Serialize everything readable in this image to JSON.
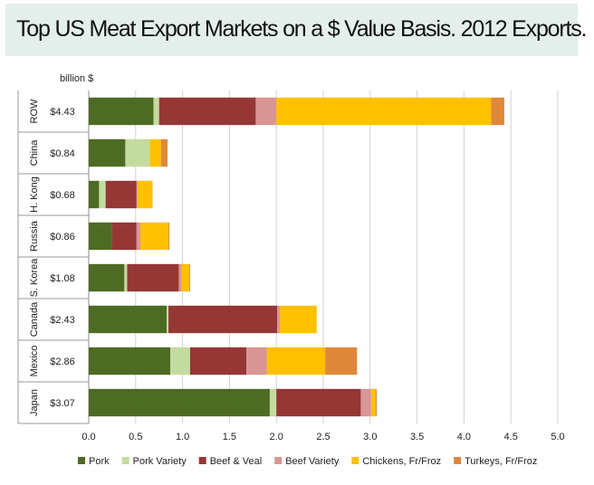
{
  "title": "Top US Meat Export Markets on a $ Value Basis. 2012 Exports.",
  "chart_data": {
    "type": "bar",
    "orientation": "horizontal",
    "stacked": true,
    "unit_label": "billion $",
    "categories": [
      "ROW",
      "China",
      "H. Kong",
      "Russia",
      "S. Korea",
      "Canada",
      "Mexico",
      "Japan"
    ],
    "totals": [
      "$4.43",
      "$0.84",
      "$0.68",
      "$0.86",
      "$1.08",
      "$2.43",
      "$2.86",
      "$3.07"
    ],
    "series": [
      {
        "name": "Pork",
        "color": "#4e6b23",
        "values": [
          0.69,
          0.39,
          0.11,
          0.25,
          0.38,
          0.83,
          0.87,
          1.93
        ]
      },
      {
        "name": "Pork Variety",
        "color": "#c4dba0",
        "values": [
          0.06,
          0.26,
          0.07,
          0.0,
          0.03,
          0.02,
          0.21,
          0.07
        ]
      },
      {
        "name": "Beef & Veal",
        "color": "#953735",
        "values": [
          1.03,
          0.0,
          0.33,
          0.26,
          0.55,
          1.16,
          0.6,
          0.9
        ]
      },
      {
        "name": "Beef Variety",
        "color": "#d99694",
        "values": [
          0.22,
          0.0,
          0.01,
          0.04,
          0.03,
          0.03,
          0.22,
          0.11
        ]
      },
      {
        "name": "Chickens, Fr/Froz",
        "color": "#ffc000",
        "values": [
          2.29,
          0.12,
          0.16,
          0.3,
          0.08,
          0.39,
          0.62,
          0.05
        ]
      },
      {
        "name": "Turkeys, Fr/Froz",
        "color": "#e0883a",
        "values": [
          0.14,
          0.07,
          0.0,
          0.01,
          0.01,
          0.0,
          0.34,
          0.01
        ]
      }
    ],
    "xlim": [
      0,
      5
    ],
    "xticks": [
      "0.0",
      "0.5",
      "1.0",
      "1.5",
      "2.0",
      "2.5",
      "3.0",
      "3.5",
      "4.0",
      "4.5",
      "5.0"
    ],
    "grid": true,
    "legend_position": "bottom"
  }
}
